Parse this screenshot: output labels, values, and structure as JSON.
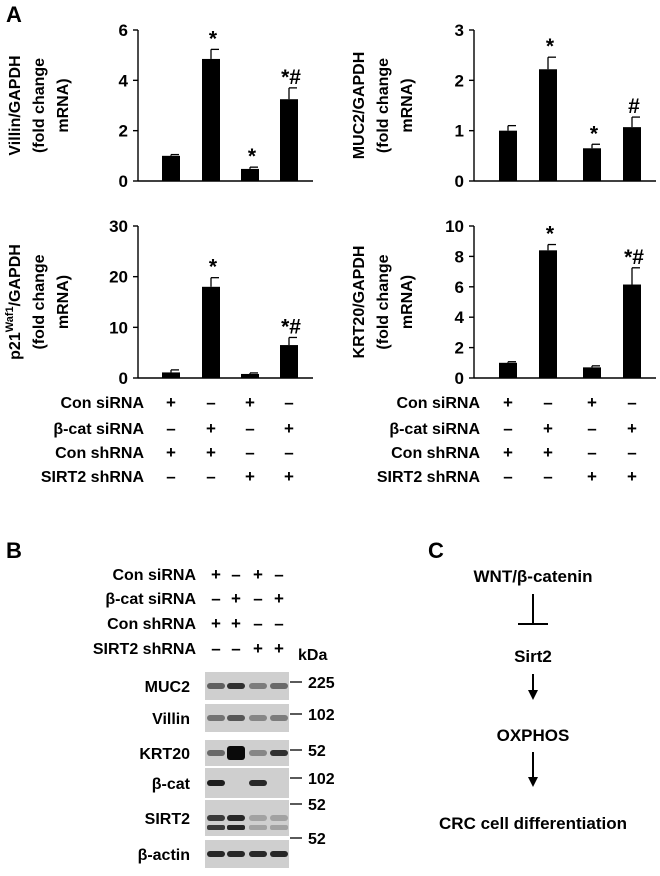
{
  "panels": {
    "a": "A",
    "b": "B",
    "c": "C"
  },
  "chart_data": [
    {
      "type": "bar",
      "ylabel_lines": [
        "Villin/GAPDH",
        "(fold change",
        "mRNA)"
      ],
      "ylim": [
        0,
        6
      ],
      "yticks": [
        "0",
        "2",
        "4",
        "6"
      ],
      "ytick_values": [
        0,
        2,
        4,
        6
      ],
      "values": [
        1.0,
        4.85,
        0.48,
        3.25
      ],
      "errors": [
        0.05,
        0.38,
        0.07,
        0.45
      ],
      "annotations": [
        "",
        "*",
        "*",
        "*#"
      ]
    },
    {
      "type": "bar",
      "ylabel_lines": [
        "MUC2/GAPDH",
        "(fold change",
        "mRNA)"
      ],
      "ylim": [
        0,
        3
      ],
      "yticks": [
        "0",
        "1",
        "2",
        "3"
      ],
      "ytick_values": [
        0,
        1,
        2,
        3
      ],
      "values": [
        1.0,
        2.22,
        0.65,
        1.07
      ],
      "errors": [
        0.1,
        0.24,
        0.08,
        0.2
      ],
      "annotations": [
        "",
        "*",
        "*",
        "#"
      ]
    },
    {
      "type": "bar",
      "ylabel_lines": [
        "p21Waf1/GAPDH",
        "(fold change",
        "mRNA)"
      ],
      "ylabel_parts": {
        "pre": "p21",
        "sup": "Waf1",
        "post": "/GAPDH"
      },
      "ylim": [
        0,
        30
      ],
      "yticks": [
        "0",
        "10",
        "20",
        "30"
      ],
      "ytick_values": [
        0,
        10,
        20,
        30
      ],
      "values": [
        1.1,
        18.0,
        0.8,
        6.5
      ],
      "errors": [
        0.5,
        1.8,
        0.2,
        1.5
      ],
      "annotations": [
        "",
        "*",
        "",
        "*#"
      ]
    },
    {
      "type": "bar",
      "ylabel_lines": [
        "KRT20/GAPDH",
        "(fold change",
        "mRNA)"
      ],
      "ylim": [
        0,
        10
      ],
      "yticks": [
        "0",
        "2",
        "4",
        "6",
        "8",
        "10"
      ],
      "ytick_values": [
        0,
        2,
        4,
        6,
        8,
        10
      ],
      "values": [
        1.0,
        8.4,
        0.7,
        6.15
      ],
      "errors": [
        0.07,
        0.38,
        0.1,
        1.1
      ],
      "annotations": [
        "",
        "*",
        "",
        "*#"
      ]
    }
  ],
  "conditions": {
    "labels": [
      "Con siRNA",
      "β-cat siRNA",
      "Con shRNA",
      "SIRT2 shRNA"
    ],
    "rows": [
      [
        "+",
        "–",
        "+",
        "–"
      ],
      [
        "–",
        "+",
        "–",
        "+"
      ],
      [
        "+",
        "+",
        "–",
        "–"
      ],
      [
        "–",
        "–",
        "+",
        "+"
      ]
    ]
  },
  "western": {
    "kda_label": "kDa",
    "bands": [
      {
        "name": "MUC2",
        "marker": "225",
        "intensity": [
          0.55,
          0.8,
          0.4,
          0.5
        ]
      },
      {
        "name": "Villin",
        "marker": "102",
        "intensity": [
          0.45,
          0.6,
          0.35,
          0.4
        ]
      },
      {
        "name": "KRT20",
        "marker": "52",
        "intensity": [
          0.5,
          1.0,
          0.35,
          0.8
        ]
      },
      {
        "name": "β-cat",
        "marker": "102",
        "intensity": [
          0.9,
          0.0,
          0.85,
          0.0
        ]
      },
      {
        "name": "SIRT2",
        "marker": "52",
        "marker2": "52",
        "intensity": [
          0.75,
          0.85,
          0.2,
          0.2
        ]
      },
      {
        "name": "β-actin",
        "intensity": [
          0.85,
          0.85,
          0.85,
          0.85
        ]
      }
    ]
  },
  "pathway": {
    "nodes": [
      "WNT/β-catenin",
      "Sirt2",
      "OXPHOS",
      "CRC cell differentiation"
    ],
    "edges": [
      "inhibits",
      "activates",
      "activates"
    ]
  }
}
